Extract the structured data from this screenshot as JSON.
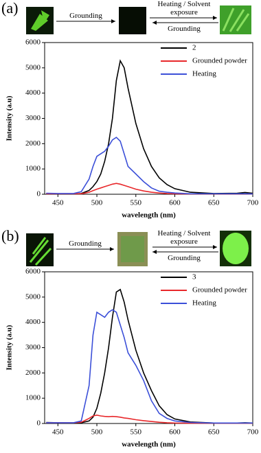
{
  "chart_data": [
    {
      "type": "line",
      "panel_label": "(a)",
      "scheme": {
        "forward": "Grounding",
        "heating": "Heating / Solvent exposure",
        "back": "Grounding"
      },
      "xlabel": "wavelength (nm)",
      "ylabel": "Intensity (a.u)",
      "x": [
        435,
        450,
        470,
        480,
        490,
        495,
        500,
        505,
        510,
        515,
        520,
        525,
        530,
        535,
        540,
        550,
        560,
        570,
        580,
        590,
        600,
        620,
        650,
        680,
        690,
        700
      ],
      "series": [
        {
          "name": "2",
          "color": "#000000",
          "values": [
            30,
            20,
            10,
            30,
            150,
            300,
            500,
            800,
            1300,
            2000,
            3000,
            4500,
            5280,
            5000,
            4200,
            2800,
            1800,
            1100,
            650,
            380,
            220,
            80,
            30,
            40,
            70,
            40
          ]
        },
        {
          "name": "Grounded powder",
          "color": "#e8272a",
          "values": [
            20,
            20,
            20,
            20,
            80,
            140,
            200,
            250,
            300,
            350,
            400,
            430,
            400,
            350,
            300,
            200,
            130,
            80,
            50,
            30,
            20,
            10,
            10,
            10,
            10,
            10
          ]
        },
        {
          "name": "Heating",
          "color": "#3b4fd8",
          "values": [
            40,
            30,
            30,
            100,
            600,
            1100,
            1500,
            1600,
            1700,
            1900,
            2150,
            2250,
            2100,
            1600,
            1100,
            800,
            500,
            250,
            120,
            80,
            50,
            20,
            20,
            20,
            20,
            10
          ]
        }
      ],
      "xlim": [
        433,
        700
      ],
      "xticks": [
        450,
        500,
        550,
        600,
        650,
        700
      ],
      "ylim": [
        0,
        6000
      ],
      "yticks": [
        0,
        1000,
        2000,
        3000,
        4000,
        5000,
        6000
      ]
    },
    {
      "type": "line",
      "panel_label": "(b)",
      "scheme": {
        "forward": "Grounding",
        "heating": "Heating / Solvent exposure",
        "back": "Grounding"
      },
      "xlabel": "wavelength (nm)",
      "ylabel": "Intensity (a.u)",
      "x": [
        435,
        450,
        470,
        480,
        490,
        495,
        500,
        505,
        510,
        515,
        520,
        525,
        530,
        535,
        540,
        550,
        560,
        570,
        580,
        590,
        600,
        620,
        650,
        680,
        690,
        700
      ],
      "series": [
        {
          "name": "3",
          "color": "#000000",
          "values": [
            40,
            30,
            20,
            30,
            100,
            250,
            600,
            1200,
            2000,
            3000,
            4200,
            5200,
            5300,
            4800,
            4100,
            2900,
            2000,
            1300,
            700,
            350,
            180,
            60,
            20,
            20,
            30,
            20
          ]
        },
        {
          "name": "Grounded powder",
          "color": "#e8272a",
          "values": [
            30,
            30,
            30,
            50,
            200,
            300,
            330,
            300,
            280,
            270,
            280,
            270,
            250,
            220,
            200,
            150,
            110,
            80,
            50,
            30,
            20,
            10,
            10,
            10,
            10,
            10
          ]
        },
        {
          "name": "Heating",
          "color": "#3b4fd8",
          "values": [
            30,
            30,
            30,
            100,
            1500,
            3500,
            4400,
            4300,
            4200,
            4400,
            4500,
            4400,
            3900,
            3400,
            2800,
            2300,
            1700,
            900,
            400,
            200,
            100,
            40,
            20,
            20,
            20,
            20
          ]
        }
      ],
      "xlim": [
        433,
        700
      ],
      "xticks": [
        450,
        500,
        550,
        600,
        650,
        700
      ],
      "ylim": [
        0,
        6000
      ],
      "yticks": [
        0,
        1000,
        2000,
        3000,
        4000,
        5000,
        6000
      ]
    }
  ]
}
